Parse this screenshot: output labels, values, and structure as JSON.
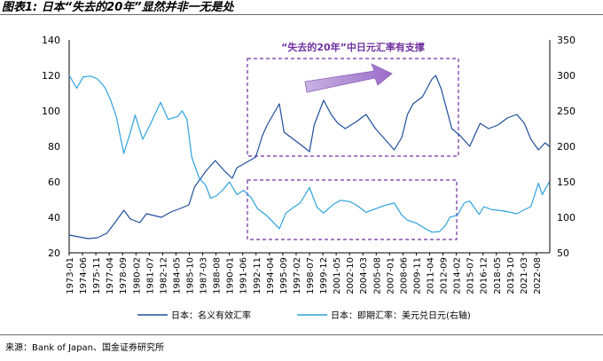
{
  "figure": {
    "title": "图表1: 日本“失去的20年”显然并非一无是处",
    "source": "来源：Bank of Japan、国金证券研究所"
  },
  "chart_data": {
    "type": "line",
    "title": "",
    "annotation": "“失去的20年”中日元汇率有支撑",
    "x_start": "1973-01",
    "x_end": "2023-12",
    "x_ticks": [
      "1973-01",
      "1974-06",
      "1975-11",
      "1977-04",
      "1978-09",
      "1980-02",
      "1981-07",
      "1982-12",
      "1984-05",
      "1985-10",
      "1987-03",
      "1988-08",
      "1990-01",
      "1991-06",
      "1992-11",
      "1994-04",
      "1995-09",
      "1997-02",
      "1998-07",
      "1999-12",
      "2001-05",
      "2002-10",
      "2004-03",
      "2005-08",
      "2007-01",
      "2008-06",
      "2009-11",
      "2011-04",
      "2012-09",
      "2014-02",
      "2015-07",
      "2016-12",
      "2018-05",
      "2019-10",
      "2021-03",
      "2022-08"
    ],
    "y_left": {
      "min": 20,
      "max": 140,
      "ticks": [
        "140",
        "120",
        "100",
        "80",
        "60",
        "40",
        "20"
      ]
    },
    "y_right": {
      "min": 50,
      "max": 350,
      "ticks": [
        "350",
        "300",
        "250",
        "200",
        "150",
        "100",
        "50"
      ]
    },
    "series": [
      {
        "name": "日本：名义有效汇率",
        "axis": "left",
        "color": "#1f4e9c",
        "points": [
          [
            1973.0,
            30
          ],
          [
            1974.0,
            29
          ],
          [
            1975.0,
            28
          ],
          [
            1976.0,
            28.5
          ],
          [
            1977.0,
            31
          ],
          [
            1978.0,
            38
          ],
          [
            1978.8,
            44
          ],
          [
            1979.5,
            39
          ],
          [
            1980.5,
            37
          ],
          [
            1981.2,
            42
          ],
          [
            1982.8,
            40
          ],
          [
            1983.8,
            43
          ],
          [
            1984.8,
            45
          ],
          [
            1985.7,
            47
          ],
          [
            1986.3,
            57
          ],
          [
            1987.5,
            66
          ],
          [
            1988.5,
            72
          ],
          [
            1989.5,
            66
          ],
          [
            1990.3,
            62
          ],
          [
            1990.8,
            68
          ],
          [
            1991.5,
            70
          ],
          [
            1992.8,
            74
          ],
          [
            1993.5,
            86
          ],
          [
            1994.0,
            92
          ],
          [
            1995.3,
            104
          ],
          [
            1995.8,
            88
          ],
          [
            1996.8,
            84
          ],
          [
            1997.8,
            80
          ],
          [
            1998.5,
            77
          ],
          [
            1999.0,
            92
          ],
          [
            2000.0,
            106
          ],
          [
            2000.8,
            98
          ],
          [
            2001.5,
            93
          ],
          [
            2002.3,
            90
          ],
          [
            2003.5,
            94
          ],
          [
            2004.5,
            98
          ],
          [
            2005.5,
            90
          ],
          [
            2006.5,
            84
          ],
          [
            2007.5,
            78
          ],
          [
            2008.3,
            85
          ],
          [
            2008.9,
            98
          ],
          [
            2009.5,
            104
          ],
          [
            2010.5,
            108
          ],
          [
            2011.5,
            118
          ],
          [
            2011.9,
            120
          ],
          [
            2012.5,
            112
          ],
          [
            2013.1,
            100
          ],
          [
            2013.6,
            90
          ],
          [
            2014.5,
            86
          ],
          [
            2015.5,
            80
          ],
          [
            2016.6,
            93
          ],
          [
            2017.5,
            90
          ],
          [
            2018.5,
            92
          ],
          [
            2019.5,
            96
          ],
          [
            2020.5,
            98
          ],
          [
            2021.3,
            93
          ],
          [
            2022.0,
            84
          ],
          [
            2022.8,
            78
          ],
          [
            2023.5,
            82
          ],
          [
            2023.95,
            80
          ]
        ]
      },
      {
        "name": "日本：即期汇率：美元兑日元(右轴)",
        "axis": "right",
        "color": "#2ea1dc",
        "points": [
          [
            1973.0,
            300
          ],
          [
            1973.8,
            282
          ],
          [
            1974.5,
            298
          ],
          [
            1975.3,
            299
          ],
          [
            1976.0,
            295
          ],
          [
            1976.8,
            283
          ],
          [
            1977.4,
            265
          ],
          [
            1978.0,
            242
          ],
          [
            1978.8,
            190
          ],
          [
            1979.5,
            220
          ],
          [
            1980.0,
            244
          ],
          [
            1980.8,
            210
          ],
          [
            1981.5,
            228
          ],
          [
            1982.7,
            262
          ],
          [
            1983.5,
            238
          ],
          [
            1984.5,
            242
          ],
          [
            1985.0,
            250
          ],
          [
            1985.5,
            238
          ],
          [
            1986.0,
            185
          ],
          [
            1986.8,
            155
          ],
          [
            1987.5,
            145
          ],
          [
            1988.0,
            127
          ],
          [
            1988.6,
            130
          ],
          [
            1989.4,
            140
          ],
          [
            1990.0,
            150
          ],
          [
            1990.8,
            132
          ],
          [
            1991.5,
            138
          ],
          [
            1992.3,
            128
          ],
          [
            1993.0,
            112
          ],
          [
            1994.0,
            102
          ],
          [
            1995.3,
            84
          ],
          [
            1996.0,
            106
          ],
          [
            1996.8,
            114
          ],
          [
            1997.5,
            120
          ],
          [
            1998.5,
            142
          ],
          [
            1999.3,
            114
          ],
          [
            2000.0,
            106
          ],
          [
            2001.0,
            118
          ],
          [
            2001.8,
            124
          ],
          [
            2002.8,
            122
          ],
          [
            2003.5,
            117
          ],
          [
            2004.5,
            107
          ],
          [
            2005.5,
            112
          ],
          [
            2006.5,
            117
          ],
          [
            2007.5,
            120
          ],
          [
            2008.3,
            103
          ],
          [
            2008.9,
            96
          ],
          [
            2009.8,
            92
          ],
          [
            2010.8,
            84
          ],
          [
            2011.5,
            79
          ],
          [
            2012.3,
            80
          ],
          [
            2012.9,
            88
          ],
          [
            2013.4,
            100
          ],
          [
            2014.2,
            103
          ],
          [
            2014.9,
            120
          ],
          [
            2015.5,
            123
          ],
          [
            2016.5,
            104
          ],
          [
            2017.0,
            115
          ],
          [
            2017.8,
            111
          ],
          [
            2018.5,
            110
          ],
          [
            2019.5,
            108
          ],
          [
            2020.5,
            105
          ],
          [
            2021.2,
            110
          ],
          [
            2022.0,
            115
          ],
          [
            2022.8,
            148
          ],
          [
            2023.2,
            132
          ],
          [
            2023.7,
            144
          ],
          [
            2023.95,
            150
          ]
        ]
      }
    ]
  },
  "legend": [
    {
      "label": "日本：名义有效汇率",
      "color": "#1f4e9c"
    },
    {
      "label": "日本：即期汇率：美元兑日元(右轴)",
      "color": "#2ea1dc"
    }
  ]
}
